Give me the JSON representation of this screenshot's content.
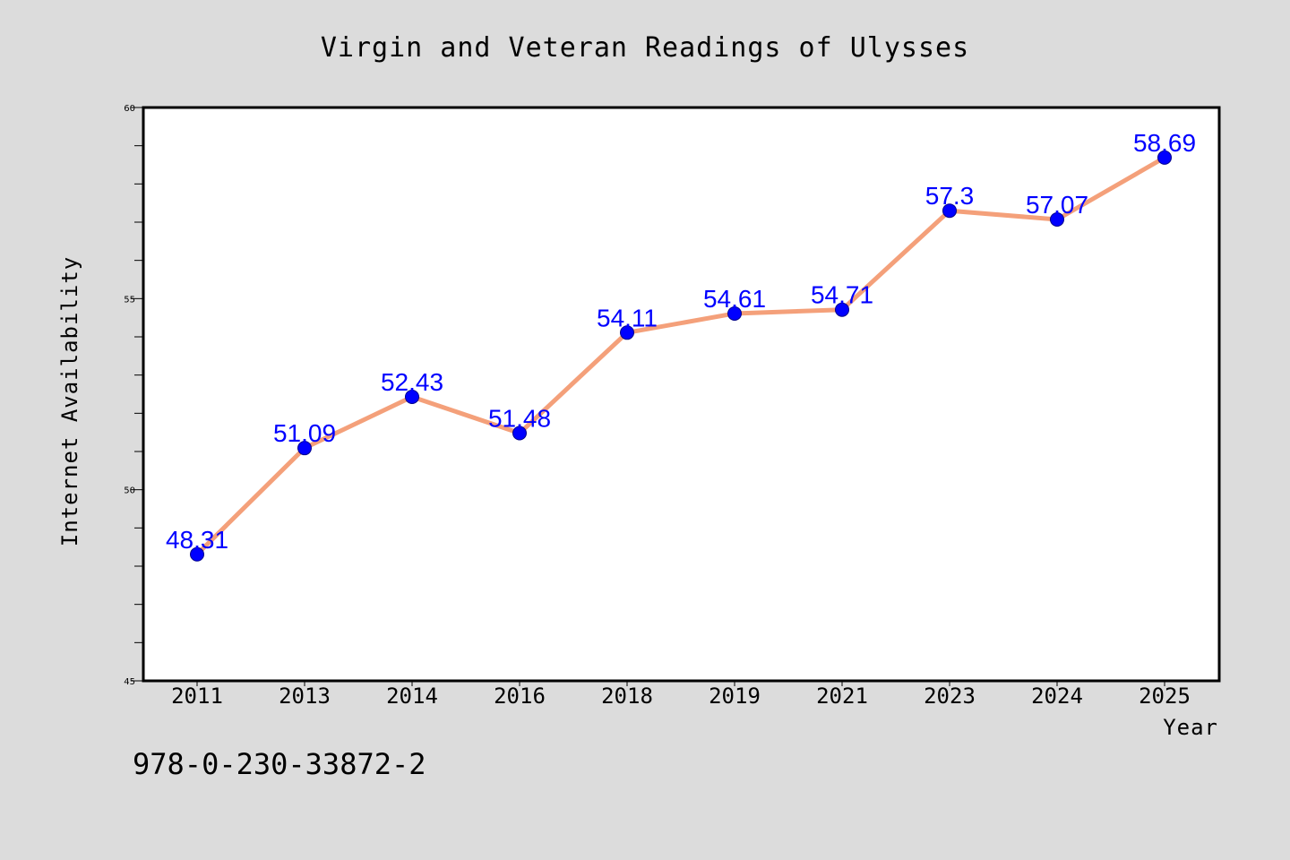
{
  "chart_data": {
    "type": "line",
    "title": "Virgin and Veteran Readings of Ulysses",
    "xlabel": "Year",
    "ylabel": "Internet Availability",
    "categories": [
      "2011",
      "2013",
      "2014",
      "2016",
      "2018",
      "2019",
      "2021",
      "2023",
      "2024",
      "2025"
    ],
    "series": [
      {
        "values": [
          48.31,
          51.09,
          52.43,
          51.48,
          54.11,
          54.61,
          54.71,
          57.3,
          57.07,
          58.69
        ],
        "labels": [
          "48.31",
          "51.09",
          "52.43",
          "51.48",
          "54.11",
          "54.61",
          "54.71",
          "57.3",
          "57.07",
          "58.69"
        ],
        "line_color": "#f4a07a",
        "marker_color": "#0000ff"
      }
    ],
    "ylim": [
      45,
      60
    ],
    "yticks": [
      45,
      50,
      55,
      60
    ],
    "ytick_labels": [
      "45",
      "50",
      "55",
      "60"
    ],
    "grid": false
  },
  "footer": {
    "isbn": "978-0-230-33872-2"
  },
  "colors": {
    "background": "#dcdcdc",
    "plot_background": "#ffffff",
    "line": "#f4a07a",
    "marker": "#0000ff",
    "data_label": "#0000ff"
  }
}
